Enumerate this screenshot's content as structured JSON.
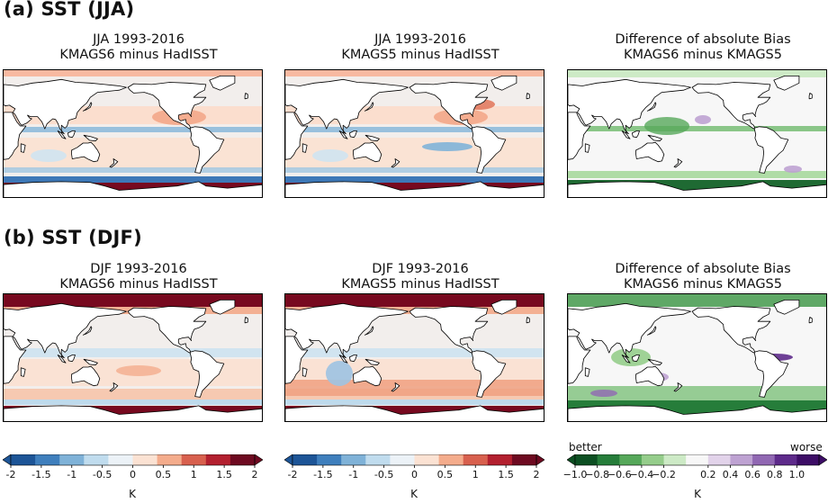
{
  "sections": {
    "a": {
      "label": "(a) SST (JJA)"
    },
    "b": {
      "label": "(b) SST (DJF)"
    }
  },
  "panels": {
    "a1": {
      "line1": "JJA 1993-2016",
      "line2": "KMAGS6 minus HadISST",
      "type": "bias"
    },
    "a2": {
      "line1": "JJA 1993-2016",
      "line2": "KMAGS5 minus HadISST",
      "type": "bias"
    },
    "a3": {
      "line1": "Difference of absolute Bias",
      "line2": "KMAGS6 minus KMAGS5",
      "type": "diff"
    },
    "b1": {
      "line1": "DJF 1993-2016",
      "line2": "KMAGS6 minus HadISST",
      "type": "bias"
    },
    "b2": {
      "line1": "DJF 1993-2016",
      "line2": "KMAGS5 minus HadISST",
      "type": "bias"
    },
    "b3": {
      "line1": "Difference of absolute Bias",
      "line2": "KMAGS6 minus KMAGS5",
      "type": "diff"
    }
  },
  "colorbars": {
    "bias": {
      "ticks": [
        "-2",
        "-1.5",
        "-1",
        "-0.5",
        "0",
        "0.5",
        "1",
        "1.5",
        "2"
      ],
      "unit": "K",
      "colors": [
        "#1d5597",
        "#3f7fbd",
        "#7fb2d8",
        "#c0dcee",
        "#ecf2f7",
        "#fbe2d3",
        "#f4ac8c",
        "#d8604e",
        "#b3202f",
        "#6e0a21"
      ]
    },
    "diff": {
      "ticks": [
        "−1.0",
        "−0.8",
        "−0.6",
        "−0.4",
        "−0.2",
        "0.2",
        "0.4",
        "0.6",
        "0.8",
        "1.0"
      ],
      "unit": "K",
      "better_label": "better",
      "worse_label": "worse",
      "colors": [
        "#0c4f22",
        "#267d3a",
        "#56a85a",
        "#95cd8b",
        "#cdeac6",
        "#f7f7f7",
        "#e2d3ea",
        "#bea2d2",
        "#9168b3",
        "#5e2b8b",
        "#3d0d66"
      ]
    }
  },
  "colors": {
    "land": "#ffffff",
    "coast": "#000000",
    "warm": "#f7c5ad",
    "cool": "#cfe3f1",
    "neutral_sea": "#f4f0ee",
    "polar_warm": "#77091f",
    "polar_cool": "#2a6aad"
  }
}
